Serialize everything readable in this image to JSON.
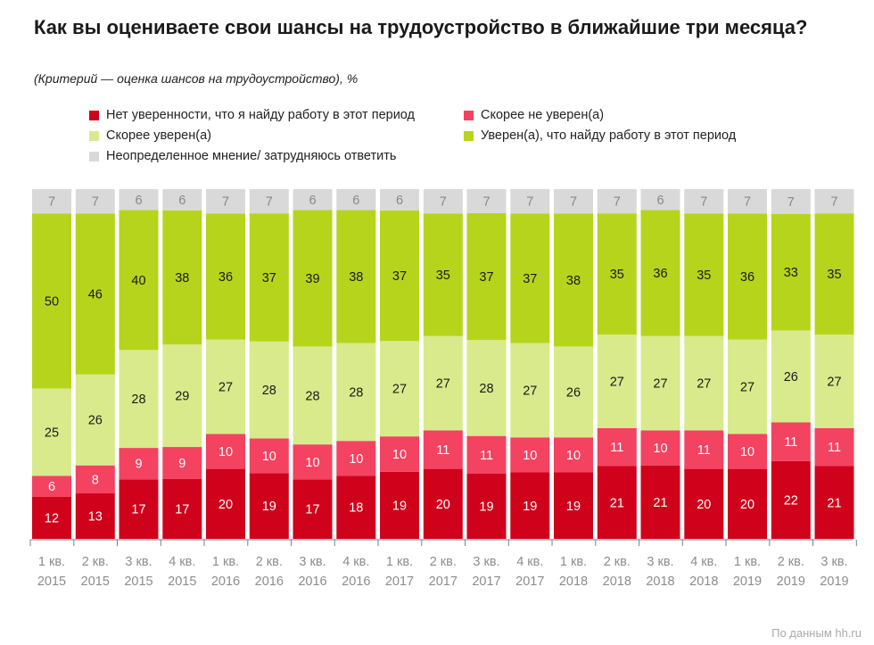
{
  "title": "Как вы оцениваете свои шансы на трудоустройство в ближайшие три месяца?",
  "subtitle": "(Критерий — оценка шансов на трудоустройство), %",
  "source": "По данным hh.ru",
  "colors": {
    "no_confidence": "#d0021b",
    "rather_not": "#f44261",
    "rather_sure": "#d9ea8c",
    "sure": "#b6d41c",
    "undecided": "#d9d9d9"
  },
  "chart_data": {
    "type": "bar",
    "stacked": true,
    "normalized": true,
    "categories": [
      [
        "1 кв.",
        "2015"
      ],
      [
        "2 кв.",
        "2015"
      ],
      [
        "3 кв.",
        "2015"
      ],
      [
        "4 кв.",
        "2015"
      ],
      [
        "1 кв.",
        "2016"
      ],
      [
        "2 кв.",
        "2016"
      ],
      [
        "3 кв.",
        "2016"
      ],
      [
        "4 кв.",
        "2016"
      ],
      [
        "1 кв.",
        "2017"
      ],
      [
        "2 кв.",
        "2017"
      ],
      [
        "3 кв.",
        "2017"
      ],
      [
        "4 кв.",
        "2017"
      ],
      [
        "1 кв.",
        "2018"
      ],
      [
        "2 кв.",
        "2018"
      ],
      [
        "3 кв.",
        "2018"
      ],
      [
        "4 кв.",
        "2018"
      ],
      [
        "1 кв.",
        "2019"
      ],
      [
        "2 кв.",
        "2019"
      ],
      [
        "3 кв.",
        "2019"
      ]
    ],
    "series": [
      {
        "key": "no_confidence",
        "name": "Нет уверенности, что я найду работу в этот период",
        "values": [
          12,
          13,
          17,
          17,
          20,
          19,
          17,
          18,
          19,
          20,
          19,
          19,
          19,
          21,
          21,
          20,
          20,
          22,
          21
        ]
      },
      {
        "key": "rather_not",
        "name": "Скорее не уверен(а)",
        "values": [
          6,
          8,
          9,
          9,
          10,
          10,
          10,
          10,
          10,
          11,
          11,
          10,
          10,
          11,
          10,
          11,
          10,
          11,
          11
        ]
      },
      {
        "key": "rather_sure",
        "name": "Скорее уверен(а)",
        "values": [
          25,
          26,
          28,
          29,
          27,
          28,
          28,
          28,
          27,
          27,
          28,
          27,
          26,
          27,
          27,
          27,
          27,
          26,
          27
        ]
      },
      {
        "key": "sure",
        "name": "Уверен(а), что найду работу в этот период",
        "values": [
          50,
          46,
          40,
          38,
          36,
          37,
          39,
          38,
          37,
          35,
          37,
          37,
          38,
          35,
          36,
          35,
          36,
          33,
          35
        ]
      },
      {
        "key": "undecided",
        "name": "Неопределенное мнение/ затрудняюсь ответить",
        "values": [
          7,
          7,
          6,
          6,
          7,
          7,
          6,
          6,
          6,
          7,
          7,
          7,
          7,
          7,
          6,
          7,
          7,
          7,
          7
        ]
      }
    ],
    "legend_position": "top",
    "grid": false
  }
}
